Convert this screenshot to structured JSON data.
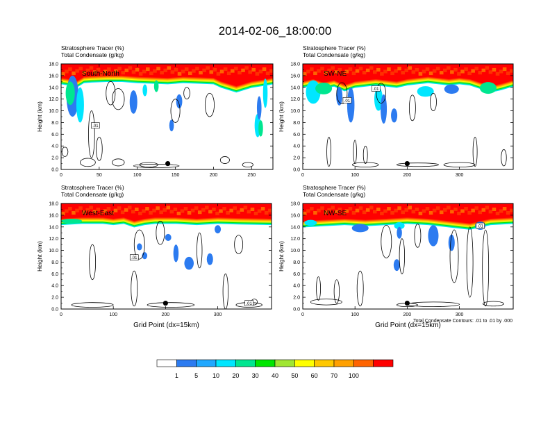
{
  "figure": {
    "title": "2014-02-06_18:00:00",
    "note": "Total Condensate Contours: .01 to .01 by .000",
    "colorbar": {
      "labels": [
        "1",
        "5",
        "10",
        "20",
        "30",
        "40",
        "50",
        "60",
        "70",
        "100"
      ],
      "colors": [
        "#ffffff",
        "#2c7bf0",
        "#20a8ff",
        "#00e6ff",
        "#00e690",
        "#00e600",
        "#a0e632",
        "#ffff00",
        "#ffc800",
        "#ffa000",
        "#ff6400",
        "#ff0000"
      ]
    },
    "contour_label": ".01"
  },
  "chart_data": [
    {
      "type": "heatmap",
      "title": "South-North",
      "subtitle_lines": [
        "Stratosphere Tracer   (%)",
        "Total Condensate   (g/kg)"
      ],
      "ylabel": "Height (km)",
      "xlabel": "",
      "xlim": [
        0,
        278
      ],
      "ylim": [
        0,
        18
      ],
      "xticks": [
        "0",
        "50",
        "100",
        "150",
        "200",
        "250"
      ],
      "yticks": [
        "0.0",
        "2.0",
        "4.0",
        "6.0",
        "8.0",
        "10.0",
        "12.0",
        "14.0",
        "16.0",
        "18.0"
      ],
      "point": {
        "x": 140,
        "y": 1.0
      },
      "tropopause": [
        [
          0,
          15.6
        ],
        [
          10,
          15.4
        ],
        [
          20,
          15.0
        ],
        [
          30,
          15.8
        ],
        [
          40,
          15.9
        ],
        [
          60,
          16.0
        ],
        [
          80,
          16.0
        ],
        [
          100,
          15.8
        ],
        [
          120,
          15.7
        ],
        [
          140,
          15.6
        ],
        [
          160,
          15.8
        ],
        [
          180,
          15.7
        ],
        [
          200,
          15.6
        ],
        [
          210,
          15.0
        ],
        [
          220,
          14.6
        ],
        [
          230,
          14.2
        ],
        [
          240,
          14.6
        ],
        [
          250,
          15.0
        ],
        [
          260,
          15.2
        ],
        [
          270,
          15.4
        ],
        [
          278,
          15.6
        ]
      ]
    },
    {
      "type": "heatmap",
      "title": "SW-NE",
      "subtitle_lines": [
        "Stratosphere Tracer   (%)",
        "Total Condensate   (g/kg)"
      ],
      "ylabel": "Height (km)",
      "xlabel": "",
      "xlim": [
        0,
        403
      ],
      "ylim": [
        0,
        18
      ],
      "xticks": [
        "0",
        "100",
        "200",
        "300"
      ],
      "yticks": [
        "0.0",
        "2.0",
        "4.0",
        "6.0",
        "8.0",
        "10.0",
        "12.0",
        "14.0",
        "16.0",
        "18.0"
      ],
      "point": {
        "x": 200,
        "y": 1.0
      },
      "tropopause": [
        [
          0,
          15.0
        ],
        [
          20,
          15.4
        ],
        [
          40,
          14.8
        ],
        [
          60,
          15.2
        ],
        [
          80,
          14.4
        ],
        [
          100,
          15.0
        ],
        [
          120,
          15.2
        ],
        [
          140,
          15.4
        ],
        [
          160,
          15.2
        ],
        [
          180,
          15.0
        ],
        [
          200,
          15.4
        ],
        [
          220,
          15.6
        ],
        [
          240,
          15.8
        ],
        [
          260,
          15.6
        ],
        [
          280,
          15.4
        ],
        [
          300,
          15.6
        ],
        [
          320,
          15.4
        ],
        [
          340,
          14.8
        ],
        [
          360,
          14.2
        ],
        [
          380,
          14.6
        ],
        [
          403,
          15.2
        ]
      ]
    },
    {
      "type": "heatmap",
      "title": "West-East",
      "subtitle_lines": [
        "Stratosphere Tracer   (%)",
        "Total Condensate   (g/kg)"
      ],
      "ylabel": "Height (km)",
      "xlabel": "Grid Point (dx=15km)",
      "xlim": [
        0,
        403
      ],
      "ylim": [
        0,
        18
      ],
      "xticks": [
        "0",
        "100",
        "200",
        "300"
      ],
      "yticks": [
        "0.0",
        "2.0",
        "4.0",
        "6.0",
        "8.0",
        "10.0",
        "12.0",
        "14.0",
        "16.0",
        "18.0"
      ],
      "point": {
        "x": 200,
        "y": 1.0
      },
      "tropopause": [
        [
          0,
          15.4
        ],
        [
          40,
          15.6
        ],
        [
          80,
          15.6
        ],
        [
          100,
          15.4
        ],
        [
          120,
          15.6
        ],
        [
          140,
          15.0
        ],
        [
          160,
          15.4
        ],
        [
          180,
          15.6
        ],
        [
          220,
          15.6
        ],
        [
          260,
          15.4
        ],
        [
          300,
          15.6
        ],
        [
          340,
          15.5
        ],
        [
          403,
          15.4
        ]
      ]
    },
    {
      "type": "heatmap",
      "title": "NW-SE",
      "subtitle_lines": [
        "Stratosphere Tracer   (%)",
        "Total Condensate   (g/kg)"
      ],
      "ylabel": "Height (km)",
      "xlabel": "Grid Point (dx=15km)",
      "xlim": [
        0,
        403
      ],
      "ylim": [
        0,
        18
      ],
      "xticks": [
        "0",
        "100",
        "200",
        "300"
      ],
      "yticks": [
        "0.0",
        "2.0",
        "4.0",
        "6.0",
        "8.0",
        "10.0",
        "12.0",
        "14.0",
        "16.0",
        "18.0"
      ],
      "point": {
        "x": 200,
        "y": 1.0
      },
      "tropopause": [
        [
          0,
          15.0
        ],
        [
          40,
          15.2
        ],
        [
          80,
          15.4
        ],
        [
          120,
          15.2
        ],
        [
          160,
          15.4
        ],
        [
          200,
          15.6
        ],
        [
          240,
          15.4
        ],
        [
          280,
          15.0
        ],
        [
          300,
          14.8
        ],
        [
          320,
          14.6
        ],
        [
          340,
          15.0
        ],
        [
          360,
          15.4
        ],
        [
          403,
          15.6
        ]
      ]
    }
  ]
}
